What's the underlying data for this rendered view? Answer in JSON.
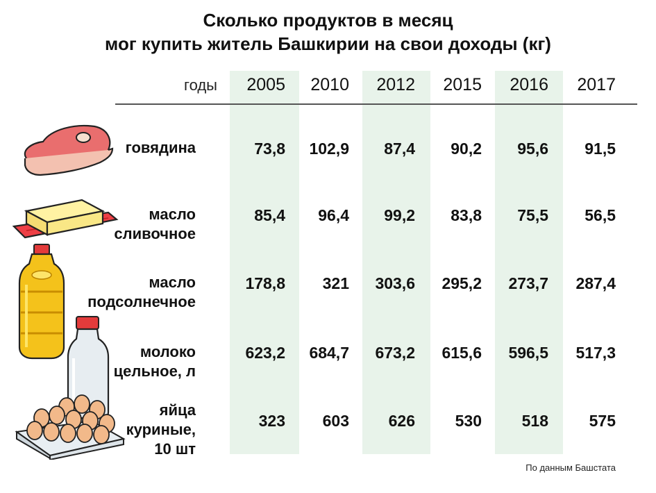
{
  "title": {
    "line1": "Сколько продуктов в месяц",
    "line2": "мог купить житель Башкирии на свои доходы (кг)"
  },
  "header": {
    "years_label": "годы"
  },
  "source": "По данным Башстата",
  "colors": {
    "band": "#e8f3ea",
    "text": "#111111",
    "rule": "#555555"
  },
  "icons": [
    "meat-icon",
    "butter-icon",
    "oil-bottle-icon",
    "milk-bottle-icon",
    "egg-tray-icon"
  ],
  "chart_data": {
    "type": "table",
    "title": "Сколько продуктов в месяц мог купить житель Башкирии на свои доходы (кг)",
    "columns": [
      "2005",
      "2010",
      "2012",
      "2015",
      "2016",
      "2017"
    ],
    "highlighted_columns": [
      "2005",
      "2012",
      "2016"
    ],
    "rows": [
      {
        "label_lines": [
          "говядина"
        ],
        "values": [
          "73,8",
          "102,9",
          "87,4",
          "90,2",
          "95,6",
          "91,5"
        ]
      },
      {
        "label_lines": [
          "масло",
          "сливочное"
        ],
        "values": [
          "85,4",
          "96,4",
          "99,2",
          "83,8",
          "75,5",
          "56,5"
        ]
      },
      {
        "label_lines": [
          "масло",
          "подсолнечное"
        ],
        "values": [
          "178,8",
          "321",
          "303,6",
          "295,2",
          "273,7",
          "287,4"
        ]
      },
      {
        "label_lines": [
          "молоко",
          "цельное, л"
        ],
        "values": [
          "623,2",
          "684,7",
          "673,2",
          "615,6",
          "596,5",
          "517,3"
        ]
      },
      {
        "label_lines": [
          "яйца",
          "куриные,",
          "10 шт"
        ],
        "values": [
          "323",
          "603",
          "626",
          "530",
          "518",
          "575"
        ]
      }
    ]
  }
}
